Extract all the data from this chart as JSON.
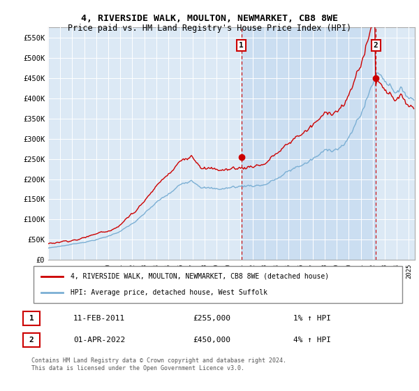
{
  "title": "4, RIVERSIDE WALK, MOULTON, NEWMARKET, CB8 8WE",
  "subtitle": "Price paid vs. HM Land Registry's House Price Index (HPI)",
  "ylim": [
    0,
    575000
  ],
  "yticks": [
    0,
    50000,
    100000,
    150000,
    200000,
    250000,
    300000,
    350000,
    400000,
    450000,
    500000,
    550000
  ],
  "background_color": "#dce9f5",
  "grid_color": "#c8d8e8",
  "hpi_line_color": "#7bafd4",
  "price_line_color": "#cc0000",
  "shade_color": "#c5daf0",
  "marker1_idx": 193,
  "marker1_price": 255000,
  "marker2_idx": 327,
  "marker2_price": 450000,
  "legend_line1": "4, RIVERSIDE WALK, MOULTON, NEWMARKET, CB8 8WE (detached house)",
  "legend_line2": "HPI: Average price, detached house, West Suffolk",
  "note1_label": "1",
  "note1_date": "11-FEB-2011",
  "note1_price": "£255,000",
  "note1_hpi": "1% ↑ HPI",
  "note2_label": "2",
  "note2_date": "01-APR-2022",
  "note2_price": "£450,000",
  "note2_hpi": "4% ↑ HPI",
  "footer": "Contains HM Land Registry data © Crown copyright and database right 2024.\nThis data is licensed under the Open Government Licence v3.0."
}
